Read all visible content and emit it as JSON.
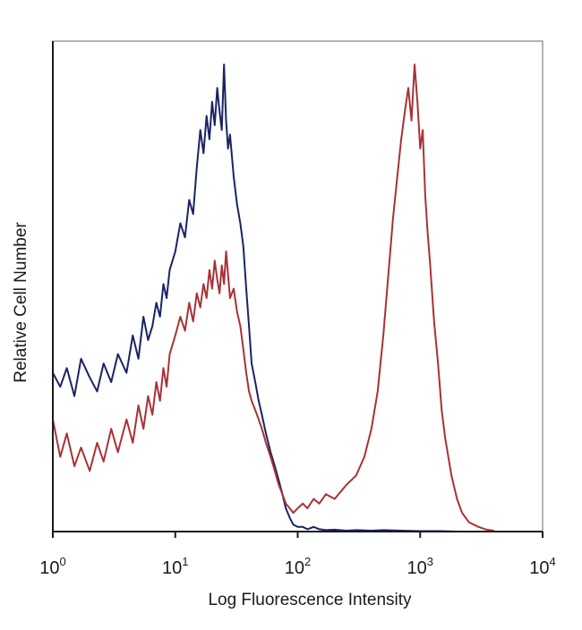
{
  "chart_data": {
    "type": "line",
    "title": "",
    "xlabel": "Log Fluorescence Intensity",
    "ylabel": "Relative Cell Number",
    "xscale": "log",
    "xlim": [
      1,
      10000
    ],
    "ylim": [
      0,
      1.05
    ],
    "grid": false,
    "legend": "none",
    "xticks": [
      {
        "value": 1,
        "base": "10",
        "exp": "0"
      },
      {
        "value": 10,
        "base": "10",
        "exp": "1"
      },
      {
        "value": 100,
        "base": "10",
        "exp": "2"
      },
      {
        "value": 1000,
        "base": "10",
        "exp": "3"
      },
      {
        "value": 10000,
        "base": "10",
        "exp": "4"
      }
    ],
    "series": [
      {
        "color": "#1a2466",
        "x": [
          1.0,
          1.15,
          1.3,
          1.5,
          1.7,
          2.0,
          2.3,
          2.6,
          3.0,
          3.4,
          4.0,
          4.5,
          5.0,
          5.5,
          6.0,
          6.5,
          7.0,
          7.5,
          8.0,
          8.5,
          9.0,
          10,
          11,
          12,
          13,
          14,
          15,
          16,
          17,
          18,
          19,
          20,
          21,
          22,
          23,
          24,
          25,
          26,
          27,
          28,
          30,
          32,
          34,
          36,
          38,
          40,
          42,
          45,
          48,
          51,
          55,
          60,
          65,
          70,
          75,
          80,
          86,
          92,
          100,
          110,
          120,
          135,
          150,
          170,
          200,
          250,
          300,
          400,
          500,
          700,
          1000,
          1500,
          2000,
          3000
        ],
        "y": [
          0.34,
          0.31,
          0.35,
          0.29,
          0.37,
          0.33,
          0.3,
          0.36,
          0.32,
          0.38,
          0.34,
          0.42,
          0.37,
          0.46,
          0.41,
          0.44,
          0.49,
          0.46,
          0.53,
          0.5,
          0.56,
          0.6,
          0.66,
          0.63,
          0.71,
          0.68,
          0.78,
          0.86,
          0.81,
          0.89,
          0.84,
          0.92,
          0.87,
          0.95,
          0.9,
          0.86,
          1.0,
          0.88,
          0.82,
          0.85,
          0.76,
          0.7,
          0.66,
          0.61,
          0.52,
          0.44,
          0.36,
          0.32,
          0.28,
          0.25,
          0.21,
          0.17,
          0.14,
          0.11,
          0.08,
          0.05,
          0.03,
          0.015,
          0.01,
          0.01,
          0.005,
          0.01,
          0.005,
          0.003,
          0.004,
          0.002,
          0.003,
          0.002,
          0.003,
          0.002,
          0.001,
          0.001,
          0.0,
          0.0
        ]
      },
      {
        "color": "#a83236",
        "x": [
          1.0,
          1.15,
          1.3,
          1.5,
          1.7,
          2.0,
          2.3,
          2.6,
          3.0,
          3.4,
          4.0,
          4.5,
          5.0,
          5.5,
          6.0,
          6.5,
          7.0,
          7.5,
          8.0,
          8.5,
          9.0,
          10,
          11,
          12,
          13,
          14,
          15,
          16,
          17,
          18,
          19,
          20,
          21,
          22,
          23,
          24,
          25,
          26,
          27,
          28,
          30,
          32,
          34,
          36,
          38,
          40,
          42,
          45,
          48,
          51,
          55,
          60,
          65,
          70,
          75,
          80,
          86,
          92,
          100,
          110,
          120,
          135,
          150,
          170,
          200,
          250,
          300,
          350,
          400,
          450,
          500,
          550,
          600,
          650,
          700,
          750,
          800,
          850,
          900,
          950,
          1000,
          1050,
          1100,
          1150,
          1200,
          1300,
          1400,
          1500,
          1600,
          1800,
          2000,
          2200,
          2500,
          3000,
          3500,
          4000
        ],
        "y": [
          0.24,
          0.16,
          0.21,
          0.14,
          0.18,
          0.13,
          0.19,
          0.15,
          0.22,
          0.17,
          0.24,
          0.19,
          0.27,
          0.22,
          0.29,
          0.25,
          0.32,
          0.28,
          0.35,
          0.31,
          0.38,
          0.42,
          0.46,
          0.43,
          0.49,
          0.45,
          0.51,
          0.48,
          0.53,
          0.5,
          0.56,
          0.52,
          0.58,
          0.54,
          0.51,
          0.57,
          0.53,
          0.6,
          0.55,
          0.5,
          0.52,
          0.47,
          0.44,
          0.39,
          0.34,
          0.3,
          0.28,
          0.26,
          0.24,
          0.22,
          0.19,
          0.16,
          0.13,
          0.1,
          0.08,
          0.06,
          0.05,
          0.04,
          0.05,
          0.06,
          0.05,
          0.07,
          0.06,
          0.08,
          0.07,
          0.1,
          0.12,
          0.16,
          0.22,
          0.3,
          0.42,
          0.55,
          0.67,
          0.76,
          0.84,
          0.9,
          0.95,
          0.88,
          1.0,
          0.92,
          0.82,
          0.86,
          0.72,
          0.64,
          0.58,
          0.45,
          0.36,
          0.26,
          0.2,
          0.12,
          0.07,
          0.04,
          0.02,
          0.01,
          0.004,
          0.002
        ]
      }
    ]
  }
}
